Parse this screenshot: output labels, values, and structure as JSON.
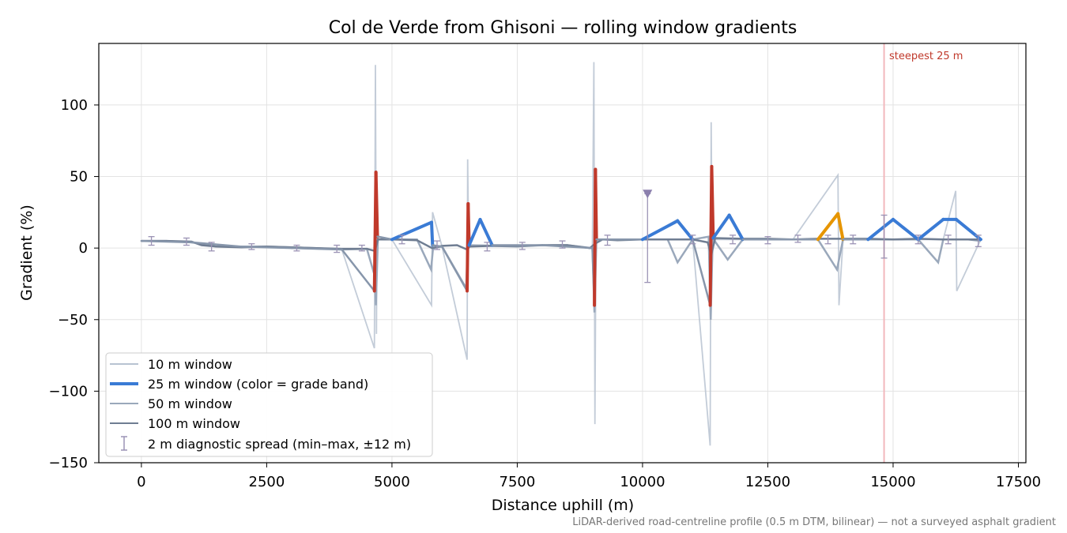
{
  "chart_data": {
    "type": "line",
    "title": "Col de Verde from Ghisoni — rolling window gradients",
    "xlabel": "Distance uphill (m)",
    "ylabel": "Gradient (%)",
    "xlim": [
      -850,
      17650
    ],
    "ylim": [
      -150,
      143
    ],
    "xticks": [
      0,
      2500,
      5000,
      7500,
      10000,
      12500,
      15000,
      17500
    ],
    "yticks": [
      100,
      50,
      0,
      -50,
      -100,
      -150
    ],
    "xtick_labels": [
      "0",
      "2500",
      "5000",
      "7500",
      "10000",
      "12500",
      "15000",
      "17500"
    ],
    "ytick_labels": [
      "100",
      "50",
      "0",
      "−50",
      "−100",
      "−150"
    ],
    "grid": true,
    "legend_position": "lower-left",
    "legend": [
      {
        "label": "10 m window",
        "kind": "line",
        "color": "#b8c3d1"
      },
      {
        "label": "25 m window (color = grade band)",
        "kind": "line",
        "color": "#3a7bd5"
      },
      {
        "label": "50 m window",
        "kind": "line",
        "color": "#9aa8bb"
      },
      {
        "label": "100 m window",
        "kind": "line",
        "color": "#6f7d92"
      },
      {
        "label": "2 m diagnostic spread (min–max, ±12 m)",
        "kind": "errorbar",
        "color": "#9b93b5"
      }
    ],
    "steepest": {
      "x": 14820,
      "label": "steepest 25 m",
      "color": "#c0392b"
    },
    "marker": {
      "x": 10100,
      "y": 38,
      "color": "#8b7fad"
    },
    "footnote": "LiDAR-derived road-centreline profile (0.5 m DTM, bilinear) — not a surveyed asphalt gradient",
    "series": [
      {
        "name": "100 m window",
        "x": [
          0,
          500,
          1000,
          1200,
          1500,
          2000,
          2500,
          3000,
          3500,
          4000,
          4500,
          4660,
          4720,
          5000,
          5500,
          5800,
          6000,
          6300,
          6500,
          6550,
          7000,
          7500,
          8000,
          8500,
          8950,
          9050,
          9200,
          9500,
          10000,
          10500,
          11000,
          11300,
          11370,
          11450,
          12000,
          12500,
          13000,
          13500,
          14000,
          14500,
          15000,
          15500,
          16000,
          16500,
          16750
        ],
        "values": [
          5,
          5,
          4.5,
          2,
          1,
          0.5,
          1,
          0.5,
          0,
          -0.5,
          -0.5,
          -2,
          6,
          6,
          5.5,
          0,
          1.5,
          2,
          -1,
          1,
          1.5,
          1.5,
          2,
          2,
          0,
          3,
          6,
          5.5,
          6,
          6,
          6,
          4,
          -5,
          7,
          6.5,
          6.5,
          6,
          6.5,
          6.5,
          6.5,
          6,
          6.5,
          6,
          6,
          6
        ]
      },
      {
        "name": "50 m window",
        "x": [
          0,
          500,
          1000,
          1500,
          2000,
          2500,
          3000,
          3500,
          4000,
          4500,
          4660,
          4680,
          4720,
          5000,
          5500,
          5780,
          5820,
          6000,
          6480,
          6520,
          6560,
          7000,
          7500,
          8000,
          8500,
          9000,
          9040,
          9080,
          9500,
          10000,
          10500,
          10700,
          11000,
          11320,
          11360,
          11400,
          11700,
          12000,
          12500,
          13000,
          13500,
          13880,
          14000,
          14500,
          15000,
          15500,
          15900,
          16000,
          16500,
          16750
        ],
        "values": [
          5,
          5,
          4,
          1,
          1,
          1,
          0.5,
          0,
          -1,
          -0.5,
          -20,
          -40,
          8,
          6,
          6,
          -15,
          0,
          1,
          -28,
          10,
          2,
          1.5,
          1,
          2,
          2,
          0,
          -45,
          6,
          6,
          6,
          6,
          -10,
          6,
          8,
          -50,
          7,
          -8,
          6,
          6,
          6,
          6,
          -15,
          6,
          6,
          6,
          6,
          -10,
          6,
          6,
          5
        ]
      },
      {
        "name": "10 m window",
        "x": [
          0,
          1000,
          2000,
          3000,
          4000,
          4650,
          4670,
          4690,
          4700,
          5000,
          5790,
          5810,
          6000,
          6500,
          6510,
          6530,
          7000,
          8000,
          9000,
          9030,
          9050,
          9070,
          10000,
          10700,
          11000,
          11350,
          11370,
          11390,
          11410,
          12000,
          13000,
          13900,
          13920,
          14000,
          15000,
          16000,
          16250,
          16270,
          16750
        ],
        "values": [
          5,
          4,
          1,
          0,
          -1,
          -70,
          128,
          -60,
          6,
          6,
          -40,
          25,
          1,
          -78,
          62,
          2,
          2,
          2,
          0,
          130,
          -123,
          6,
          6,
          20,
          6,
          -138,
          88,
          -10,
          6,
          6,
          6,
          51,
          -40,
          6,
          6,
          6,
          40,
          -30,
          6
        ]
      },
      {
        "name": "25 m window",
        "x": [
          0,
          1000,
          2000,
          3000,
          4000,
          4650,
          4680,
          4710,
          5000,
          5790,
          5810,
          6000,
          6500,
          6520,
          6540,
          6760,
          7000,
          8000,
          9000,
          9040,
          9060,
          9080,
          9500,
          10000,
          10700,
          11000,
          11350,
          11380,
          11410,
          11730,
          12000,
          12500,
          13000,
          13500,
          13900,
          14000,
          14500,
          15000,
          15500,
          16000,
          16260,
          16750
        ],
        "values": [
          5,
          4,
          1,
          0,
          -1,
          -30,
          53,
          8,
          6,
          18,
          2,
          1,
          -30,
          31,
          2,
          20,
          2,
          2,
          0,
          -40,
          55,
          6,
          6,
          6,
          19,
          6,
          -40,
          57,
          7,
          23,
          6,
          6,
          6,
          6,
          24,
          6,
          6,
          20,
          6,
          20,
          20,
          6
        ]
      }
    ],
    "spread": {
      "x": [
        200,
        900,
        1400,
        2200,
        3100,
        3900,
        4400,
        5200,
        5900,
        6900,
        7600,
        8400,
        9300,
        10100,
        11000,
        11800,
        12500,
        13100,
        13700,
        14200,
        14820,
        15500,
        16100,
        16700
      ],
      "min": [
        2,
        2,
        -2,
        -1,
        -2,
        -3,
        -2,
        3,
        -1,
        -2,
        -1,
        0,
        2,
        -24,
        3,
        3,
        3,
        4,
        3,
        3,
        -7,
        3,
        3,
        1
      ],
      "max": [
        8,
        7,
        4,
        3,
        2,
        2,
        2,
        9,
        5,
        4,
        4,
        5,
        9,
        38,
        9,
        9,
        8,
        9,
        9,
        9,
        23,
        9,
        9,
        9
      ]
    }
  }
}
